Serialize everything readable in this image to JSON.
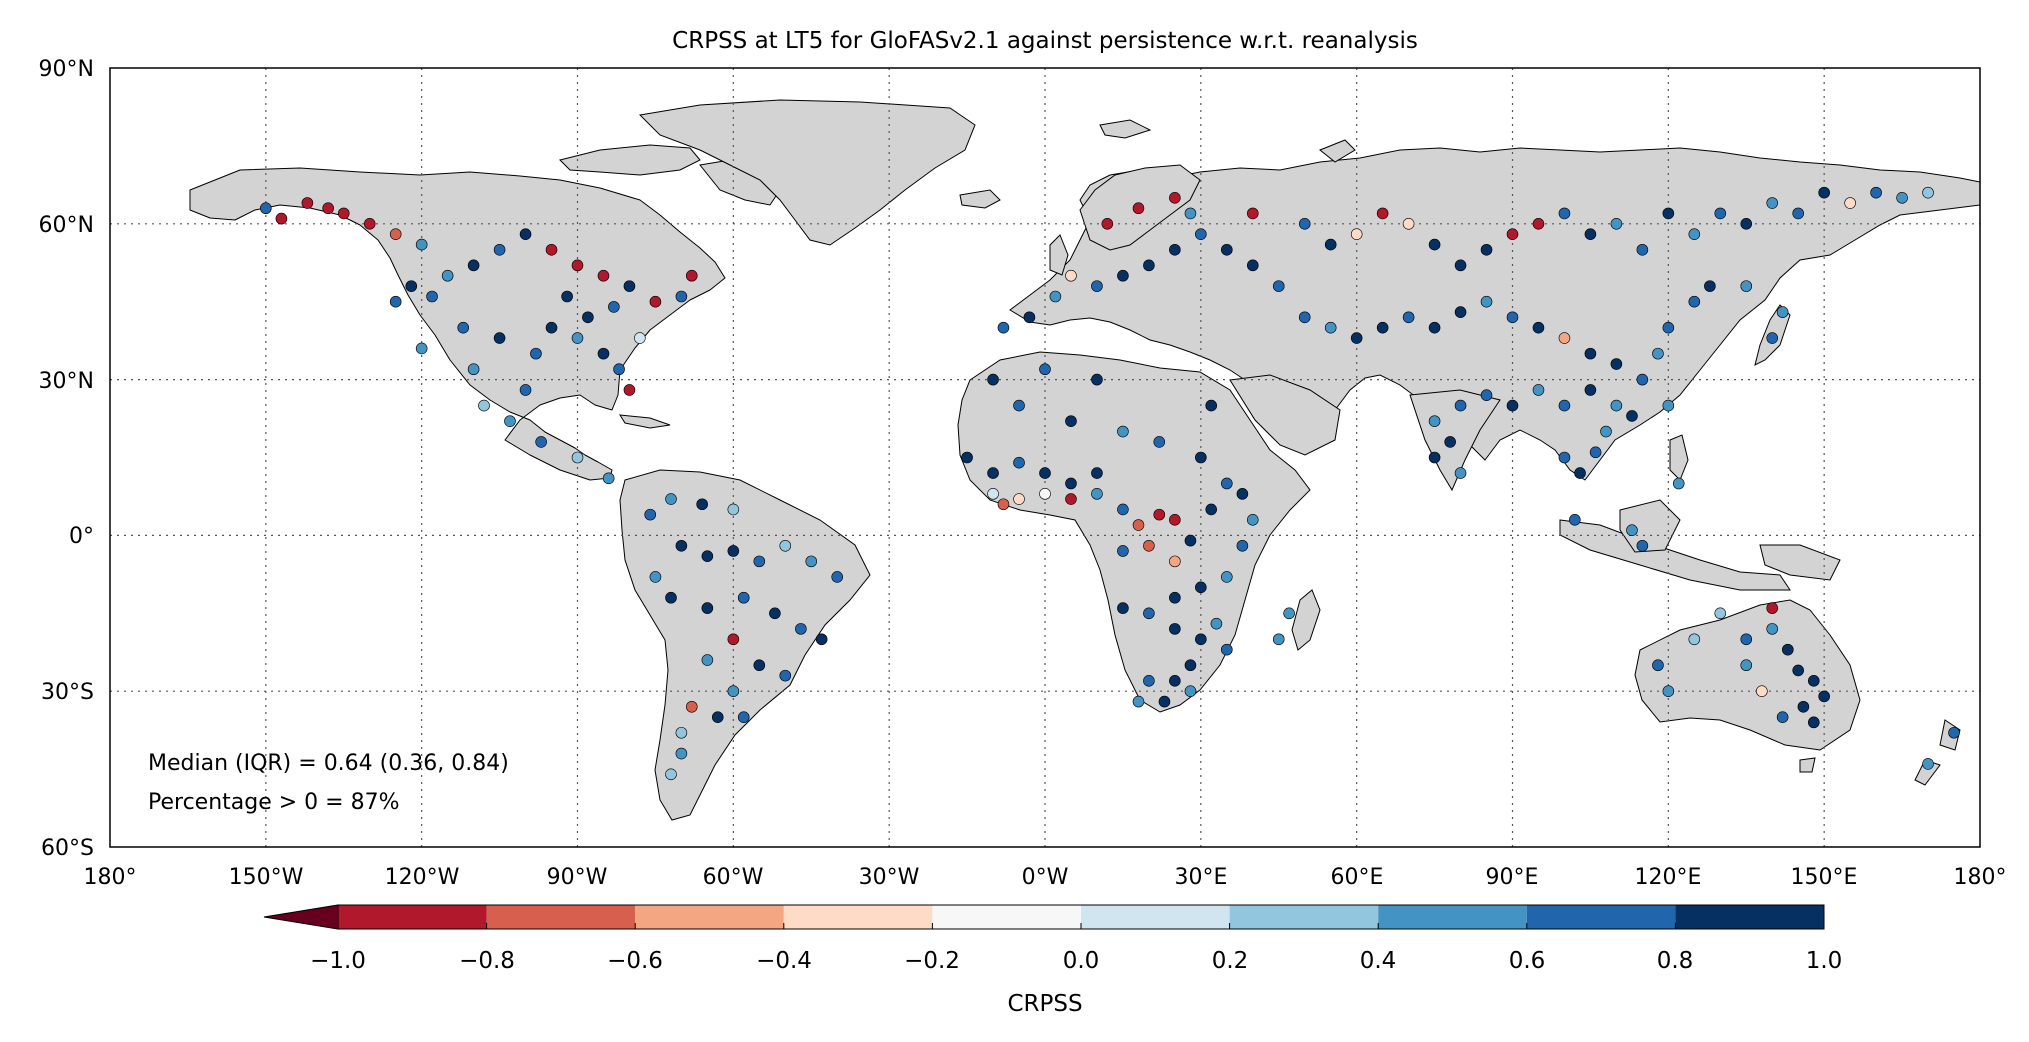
{
  "title": "CRPSS at LT5 for GloFASv2.1 against persistence w.r.t. reanalysis",
  "lat_ticks": [
    "90°N",
    "60°N",
    "30°N",
    "0°",
    "30°S",
    "60°S"
  ],
  "lon_ticks": [
    "180°",
    "150°W",
    "120°W",
    "90°W",
    "60°W",
    "30°W",
    "0°W",
    "30°E",
    "60°E",
    "90°E",
    "120°E",
    "150°E",
    "180°"
  ],
  "annotations": {
    "median": "Median (IQR) = 0.64 (0.36, 0.84)",
    "percentage": "Percentage > 0 = 87%"
  },
  "colorbar": {
    "label": "CRPSS",
    "tick_labels": [
      "−1.0",
      "−0.8",
      "−0.6",
      "−0.4",
      "−0.2",
      "0.0",
      "0.2",
      "0.4",
      "0.6",
      "0.8",
      "1.0"
    ],
    "bins": [
      -1.0,
      -0.8,
      -0.6,
      -0.4,
      -0.2,
      0.0,
      0.2,
      0.4,
      0.6,
      0.8,
      1.0
    ],
    "colors": [
      "#b2182b",
      "#d6604d",
      "#f4a582",
      "#fddbc7",
      "#f7f7f7",
      "#d1e5f0",
      "#92c5de",
      "#4393c3",
      "#2166ac",
      "#053061"
    ],
    "under_color": "#67001f",
    "extend": "min"
  },
  "colors": {
    "land": "#d3d3d3",
    "coastline": "#000000",
    "grid": "#555555",
    "marker_edge": "#000000"
  },
  "chart_data": {
    "type": "scatter",
    "map_projection": "plate-carree",
    "xlim": [
      -180,
      180
    ],
    "ylim": [
      -60,
      90
    ],
    "grid": "dotted, every 30 degrees",
    "value_field": "CRPSS",
    "summary": {
      "median": 0.64,
      "iqr": [
        0.36,
        0.84
      ],
      "percent_positive": 87
    },
    "points": [
      {
        "lon": -150,
        "lat": 63,
        "v": 0.7
      },
      {
        "lon": -147,
        "lat": 61,
        "v": -0.9
      },
      {
        "lon": -142,
        "lat": 64,
        "v": -0.95
      },
      {
        "lon": -138,
        "lat": 63,
        "v": -1.0
      },
      {
        "lon": -135,
        "lat": 62,
        "v": -0.85
      },
      {
        "lon": -130,
        "lat": 60,
        "v": -0.9
      },
      {
        "lon": -125,
        "lat": 58,
        "v": -0.7
      },
      {
        "lon": -120,
        "lat": 56,
        "v": 0.5
      },
      {
        "lon": -122,
        "lat": 48,
        "v": 0.9
      },
      {
        "lon": -118,
        "lat": 46,
        "v": 0.8
      },
      {
        "lon": -115,
        "lat": 50,
        "v": 0.6
      },
      {
        "lon": -110,
        "lat": 52,
        "v": 0.9
      },
      {
        "lon": -105,
        "lat": 55,
        "v": 0.7
      },
      {
        "lon": -100,
        "lat": 58,
        "v": 0.85
      },
      {
        "lon": -95,
        "lat": 55,
        "v": -0.9
      },
      {
        "lon": -90,
        "lat": 52,
        "v": -1.0
      },
      {
        "lon": -85,
        "lat": 50,
        "v": -0.9
      },
      {
        "lon": -80,
        "lat": 48,
        "v": 0.95
      },
      {
        "lon": -75,
        "lat": 45,
        "v": -0.95
      },
      {
        "lon": -70,
        "lat": 46,
        "v": 0.8
      },
      {
        "lon": -68,
        "lat": 50,
        "v": -0.9
      },
      {
        "lon": -112,
        "lat": 40,
        "v": 0.7
      },
      {
        "lon": -105,
        "lat": 38,
        "v": 0.9
      },
      {
        "lon": -98,
        "lat": 35,
        "v": 0.8
      },
      {
        "lon": -95,
        "lat": 40,
        "v": 0.95
      },
      {
        "lon": -90,
        "lat": 38,
        "v": 0.6
      },
      {
        "lon": -88,
        "lat": 42,
        "v": 0.9
      },
      {
        "lon": -85,
        "lat": 35,
        "v": 0.85
      },
      {
        "lon": -82,
        "lat": 32,
        "v": 0.7
      },
      {
        "lon": -80,
        "lat": 28,
        "v": -0.95
      },
      {
        "lon": -78,
        "lat": 38,
        "v": 0.1
      },
      {
        "lon": -120,
        "lat": 36,
        "v": 0.6
      },
      {
        "lon": -110,
        "lat": 32,
        "v": 0.5
      },
      {
        "lon": -100,
        "lat": 28,
        "v": 0.8
      },
      {
        "lon": -103,
        "lat": 22,
        "v": 0.6
      },
      {
        "lon": -97,
        "lat": 18,
        "v": 0.7
      },
      {
        "lon": -90,
        "lat": 15,
        "v": 0.4
      },
      {
        "lon": -84,
        "lat": 11,
        "v": 0.5
      },
      {
        "lon": -108,
        "lat": 25,
        "v": 0.3
      },
      {
        "lon": -125,
        "lat": 45,
        "v": 0.75
      },
      {
        "lon": -92,
        "lat": 46,
        "v": 0.9
      },
      {
        "lon": -83,
        "lat": 44,
        "v": 0.65
      },
      {
        "lon": -76,
        "lat": 4,
        "v": 0.8
      },
      {
        "lon": -72,
        "lat": 7,
        "v": 0.5
      },
      {
        "lon": -66,
        "lat": 6,
        "v": 0.9
      },
      {
        "lon": -60,
        "lat": 5,
        "v": 0.3
      },
      {
        "lon": -70,
        "lat": -2,
        "v": 0.95
      },
      {
        "lon": -65,
        "lat": -4,
        "v": 0.85
      },
      {
        "lon": -60,
        "lat": -3,
        "v": 0.9
      },
      {
        "lon": -55,
        "lat": -5,
        "v": 0.7
      },
      {
        "lon": -50,
        "lat": -2,
        "v": 0.4
      },
      {
        "lon": -45,
        "lat": -5,
        "v": 0.6
      },
      {
        "lon": -40,
        "lat": -8,
        "v": 0.8
      },
      {
        "lon": -75,
        "lat": -8,
        "v": 0.5
      },
      {
        "lon": -72,
        "lat": -12,
        "v": 0.95
      },
      {
        "lon": -65,
        "lat": -14,
        "v": 0.9
      },
      {
        "lon": -58,
        "lat": -12,
        "v": 0.8
      },
      {
        "lon": -52,
        "lat": -15,
        "v": 0.9
      },
      {
        "lon": -47,
        "lat": -18,
        "v": 0.7
      },
      {
        "lon": -43,
        "lat": -20,
        "v": 0.85
      },
      {
        "lon": -60,
        "lat": -20,
        "v": -0.9
      },
      {
        "lon": -65,
        "lat": -24,
        "v": 0.6
      },
      {
        "lon": -55,
        "lat": -25,
        "v": 0.9
      },
      {
        "lon": -50,
        "lat": -27,
        "v": 0.8
      },
      {
        "lon": -60,
        "lat": -30,
        "v": 0.5
      },
      {
        "lon": -68,
        "lat": -33,
        "v": -0.6
      },
      {
        "lon": -63,
        "lat": -35,
        "v": 0.9
      },
      {
        "lon": -70,
        "lat": -38,
        "v": 0.3
      },
      {
        "lon": -70,
        "lat": -42,
        "v": 0.5
      },
      {
        "lon": -72,
        "lat": -46,
        "v": 0.4
      },
      {
        "lon": -58,
        "lat": -35,
        "v": 0.7
      },
      {
        "lon": -8,
        "lat": 40,
        "v": 0.7
      },
      {
        "lon": -3,
        "lat": 42,
        "v": 0.85
      },
      {
        "lon": 2,
        "lat": 46,
        "v": 0.6
      },
      {
        "lon": 5,
        "lat": 50,
        "v": -0.3
      },
      {
        "lon": 10,
        "lat": 48,
        "v": 0.8
      },
      {
        "lon": 15,
        "lat": 50,
        "v": 0.9
      },
      {
        "lon": 20,
        "lat": 52,
        "v": 0.95
      },
      {
        "lon": 25,
        "lat": 55,
        "v": 0.85
      },
      {
        "lon": 30,
        "lat": 58,
        "v": 0.7
      },
      {
        "lon": 35,
        "lat": 55,
        "v": 0.9
      },
      {
        "lon": 40,
        "lat": 52,
        "v": 0.95
      },
      {
        "lon": 45,
        "lat": 48,
        "v": 0.8
      },
      {
        "lon": 12,
        "lat": 60,
        "v": -1.0
      },
      {
        "lon": 18,
        "lat": 63,
        "v": -0.95
      },
      {
        "lon": 25,
        "lat": 65,
        "v": -0.9
      },
      {
        "lon": 28,
        "lat": 62,
        "v": 0.5
      },
      {
        "lon": 40,
        "lat": 62,
        "v": -0.9
      },
      {
        "lon": 50,
        "lat": 60,
        "v": 0.7
      },
      {
        "lon": 55,
        "lat": 56,
        "v": 0.9
      },
      {
        "lon": 60,
        "lat": 58,
        "v": -0.2
      },
      {
        "lon": 65,
        "lat": 62,
        "v": -0.9
      },
      {
        "lon": 70,
        "lat": 60,
        "v": -0.3
      },
      {
        "lon": 75,
        "lat": 56,
        "v": 0.9
      },
      {
        "lon": 80,
        "lat": 52,
        "v": 0.85
      },
      {
        "lon": 85,
        "lat": 55,
        "v": 0.95
      },
      {
        "lon": 90,
        "lat": 58,
        "v": -0.8
      },
      {
        "lon": 95,
        "lat": 60,
        "v": -0.9
      },
      {
        "lon": 100,
        "lat": 62,
        "v": 0.8
      },
      {
        "lon": 105,
        "lat": 58,
        "v": 0.9
      },
      {
        "lon": 110,
        "lat": 60,
        "v": 0.6
      },
      {
        "lon": 115,
        "lat": 55,
        "v": 0.7
      },
      {
        "lon": 120,
        "lat": 62,
        "v": 0.95
      },
      {
        "lon": 125,
        "lat": 58,
        "v": 0.6
      },
      {
        "lon": 130,
        "lat": 62,
        "v": 0.8
      },
      {
        "lon": 135,
        "lat": 60,
        "v": 0.9
      },
      {
        "lon": 140,
        "lat": 64,
        "v": 0.5
      },
      {
        "lon": 145,
        "lat": 62,
        "v": 0.7
      },
      {
        "lon": 150,
        "lat": 66,
        "v": 0.9
      },
      {
        "lon": 155,
        "lat": 64,
        "v": -0.3
      },
      {
        "lon": 160,
        "lat": 66,
        "v": 0.8
      },
      {
        "lon": 165,
        "lat": 65,
        "v": 0.6
      },
      {
        "lon": 170,
        "lat": 66,
        "v": 0.3
      },
      {
        "lon": 50,
        "lat": 42,
        "v": 0.8
      },
      {
        "lon": 55,
        "lat": 40,
        "v": 0.6
      },
      {
        "lon": 60,
        "lat": 38,
        "v": 0.9
      },
      {
        "lon": 65,
        "lat": 40,
        "v": 0.85
      },
      {
        "lon": 70,
        "lat": 42,
        "v": 0.7
      },
      {
        "lon": 75,
        "lat": 40,
        "v": 0.95
      },
      {
        "lon": 80,
        "lat": 43,
        "v": 0.9
      },
      {
        "lon": 85,
        "lat": 45,
        "v": 0.5
      },
      {
        "lon": 90,
        "lat": 42,
        "v": 0.8
      },
      {
        "lon": 95,
        "lat": 40,
        "v": 0.9
      },
      {
        "lon": 100,
        "lat": 38,
        "v": -0.5
      },
      {
        "lon": 105,
        "lat": 35,
        "v": 0.9
      },
      {
        "lon": 110,
        "lat": 33,
        "v": 0.85
      },
      {
        "lon": 115,
        "lat": 30,
        "v": 0.7
      },
      {
        "lon": 118,
        "lat": 35,
        "v": 0.6
      },
      {
        "lon": 120,
        "lat": 40,
        "v": 0.8
      },
      {
        "lon": 125,
        "lat": 45,
        "v": 0.7
      },
      {
        "lon": 128,
        "lat": 48,
        "v": 0.9
      },
      {
        "lon": 135,
        "lat": 48,
        "v": 0.6
      },
      {
        "lon": 105,
        "lat": 28,
        "v": 0.95
      },
      {
        "lon": 110,
        "lat": 25,
        "v": 0.6
      },
      {
        "lon": 100,
        "lat": 25,
        "v": 0.8
      },
      {
        "lon": 95,
        "lat": 28,
        "v": 0.5
      },
      {
        "lon": 90,
        "lat": 25,
        "v": 0.9
      },
      {
        "lon": 85,
        "lat": 27,
        "v": 0.7
      },
      {
        "lon": 80,
        "lat": 25,
        "v": 0.8
      },
      {
        "lon": 75,
        "lat": 22,
        "v": 0.6
      },
      {
        "lon": 78,
        "lat": 18,
        "v": 0.9
      },
      {
        "lon": 75,
        "lat": 15,
        "v": 0.85
      },
      {
        "lon": 80,
        "lat": 12,
        "v": 0.5
      },
      {
        "lon": 100,
        "lat": 15,
        "v": 0.8
      },
      {
        "lon": 103,
        "lat": 12,
        "v": 0.95
      },
      {
        "lon": 106,
        "lat": 16,
        "v": 0.7
      },
      {
        "lon": 108,
        "lat": 20,
        "v": 0.6
      },
      {
        "lon": 113,
        "lat": 23,
        "v": 0.9
      },
      {
        "lon": 120,
        "lat": 25,
        "v": 0.5
      },
      {
        "lon": 102,
        "lat": 3,
        "v": 0.7
      },
      {
        "lon": 113,
        "lat": 1,
        "v": 0.6
      },
      {
        "lon": 115,
        "lat": -2,
        "v": 0.8
      },
      {
        "lon": 122,
        "lat": 10,
        "v": 0.5
      },
      {
        "lon": 140,
        "lat": 38,
        "v": 0.8
      },
      {
        "lon": 142,
        "lat": 43,
        "v": 0.6
      },
      {
        "lon": -15,
        "lat": 15,
        "v": 0.9
      },
      {
        "lon": -10,
        "lat": 12,
        "v": 0.95
      },
      {
        "lon": -5,
        "lat": 14,
        "v": 0.8
      },
      {
        "lon": 0,
        "lat": 12,
        "v": 0.9
      },
      {
        "lon": 5,
        "lat": 10,
        "v": 0.95
      },
      {
        "lon": 10,
        "lat": 12,
        "v": 0.85
      },
      {
        "lon": -10,
        "lat": 8,
        "v": 0.2
      },
      {
        "lon": -5,
        "lat": 7,
        "v": -0.3
      },
      {
        "lon": 0,
        "lat": 8,
        "v": -0.1
      },
      {
        "lon": 5,
        "lat": 7,
        "v": -0.9
      },
      {
        "lon": -8,
        "lat": 6,
        "v": -0.6
      },
      {
        "lon": 10,
        "lat": 8,
        "v": 0.5
      },
      {
        "lon": 15,
        "lat": 5,
        "v": 0.7
      },
      {
        "lon": 18,
        "lat": 2,
        "v": -0.7
      },
      {
        "lon": 22,
        "lat": 4,
        "v": -1.0
      },
      {
        "lon": 25,
        "lat": 3,
        "v": -0.9
      },
      {
        "lon": 20,
        "lat": -2,
        "v": -0.6
      },
      {
        "lon": 15,
        "lat": -3,
        "v": 0.8
      },
      {
        "lon": 25,
        "lat": -5,
        "v": -0.5
      },
      {
        "lon": 28,
        "lat": -1,
        "v": 0.9
      },
      {
        "lon": 32,
        "lat": 5,
        "v": 0.95
      },
      {
        "lon": 35,
        "lat": 10,
        "v": 0.8
      },
      {
        "lon": 38,
        "lat": 8,
        "v": 0.9
      },
      {
        "lon": 40,
        "lat": 3,
        "v": 0.6
      },
      {
        "lon": 38,
        "lat": -2,
        "v": 0.7
      },
      {
        "lon": 35,
        "lat": -8,
        "v": 0.5
      },
      {
        "lon": 30,
        "lat": -10,
        "v": 0.9
      },
      {
        "lon": 25,
        "lat": -12,
        "v": 0.95
      },
      {
        "lon": 20,
        "lat": -15,
        "v": 0.8
      },
      {
        "lon": 15,
        "lat": -14,
        "v": 0.9
      },
      {
        "lon": 25,
        "lat": -18,
        "v": 0.85
      },
      {
        "lon": 30,
        "lat": -20,
        "v": 0.95
      },
      {
        "lon": 33,
        "lat": -17,
        "v": 0.6
      },
      {
        "lon": 35,
        "lat": -22,
        "v": 0.7
      },
      {
        "lon": 28,
        "lat": -25,
        "v": 0.9
      },
      {
        "lon": 25,
        "lat": -28,
        "v": 0.95
      },
      {
        "lon": 20,
        "lat": -28,
        "v": 0.8
      },
      {
        "lon": 18,
        "lat": -32,
        "v": 0.6
      },
      {
        "lon": 23,
        "lat": -32,
        "v": 0.9
      },
      {
        "lon": 28,
        "lat": -30,
        "v": 0.5
      },
      {
        "lon": 30,
        "lat": 15,
        "v": 0.9
      },
      {
        "lon": 32,
        "lat": 25,
        "v": 0.95
      },
      {
        "lon": 22,
        "lat": 18,
        "v": 0.8
      },
      {
        "lon": 15,
        "lat": 20,
        "v": 0.6
      },
      {
        "lon": 5,
        "lat": 22,
        "v": 0.9
      },
      {
        "lon": -5,
        "lat": 25,
        "v": 0.7
      },
      {
        "lon": -10,
        "lat": 30,
        "v": 0.95
      },
      {
        "lon": 0,
        "lat": 32,
        "v": 0.8
      },
      {
        "lon": 10,
        "lat": 30,
        "v": 0.9
      },
      {
        "lon": 45,
        "lat": -20,
        "v": 0.6
      },
      {
        "lon": 47,
        "lat": -15,
        "v": 0.5
      },
      {
        "lon": 118,
        "lat": -25,
        "v": 0.8
      },
      {
        "lon": 120,
        "lat": -30,
        "v": 0.6
      },
      {
        "lon": 125,
        "lat": -20,
        "v": 0.4
      },
      {
        "lon": 130,
        "lat": -15,
        "v": 0.3
      },
      {
        "lon": 135,
        "lat": -20,
        "v": 0.7
      },
      {
        "lon": 140,
        "lat": -18,
        "v": 0.6
      },
      {
        "lon": 143,
        "lat": -22,
        "v": 0.9
      },
      {
        "lon": 145,
        "lat": -26,
        "v": 0.95
      },
      {
        "lon": 148,
        "lat": -28,
        "v": 0.9
      },
      {
        "lon": 150,
        "lat": -31,
        "v": 0.85
      },
      {
        "lon": 146,
        "lat": -33,
        "v": 0.95
      },
      {
        "lon": 142,
        "lat": -35,
        "v": 0.7
      },
      {
        "lon": 148,
        "lat": -36,
        "v": 0.9
      },
      {
        "lon": 138,
        "lat": -30,
        "v": -0.2
      },
      {
        "lon": 140,
        "lat": -14,
        "v": -0.9
      },
      {
        "lon": 135,
        "lat": -25,
        "v": 0.5
      },
      {
        "lon": 175,
        "lat": -38,
        "v": 0.7
      },
      {
        "lon": 170,
        "lat": -44,
        "v": 0.5
      }
    ]
  }
}
